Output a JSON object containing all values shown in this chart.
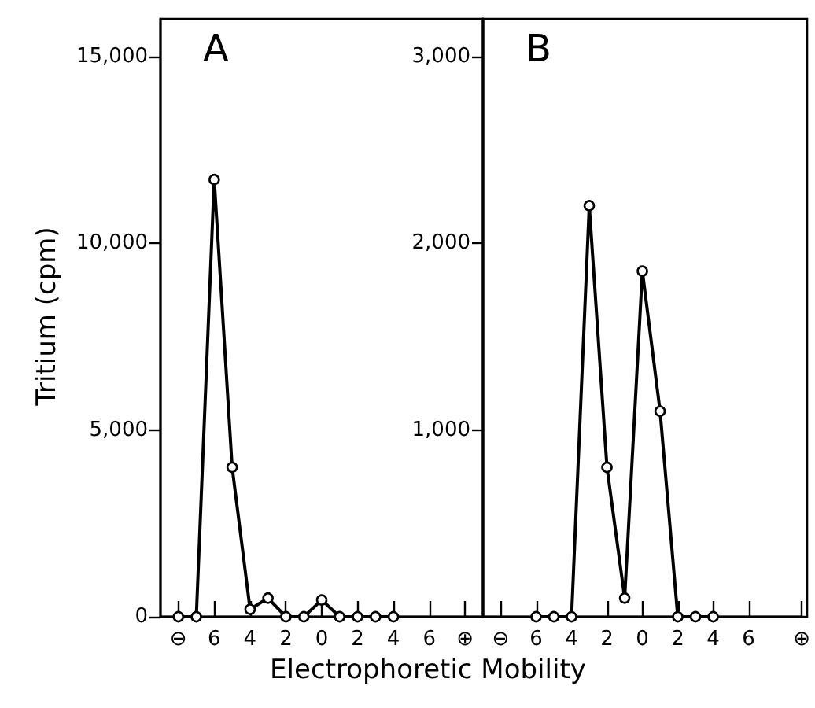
{
  "chart_data": [
    {
      "type": "line",
      "title": "A",
      "xlabel": "Electrophoretic Mobility",
      "ylabel": "Tritium (cpm)",
      "color": "#000000",
      "marker": "circle",
      "x": [
        -8,
        -7,
        -6,
        -5,
        -4,
        -3,
        -2,
        -1,
        0,
        1,
        2,
        3,
        4
      ],
      "values": [
        0,
        0,
        11700,
        4000,
        200,
        500,
        0,
        0,
        450,
        0,
        0,
        0,
        0
      ],
      "xlim": [
        -9,
        9
      ],
      "ylim": [
        0,
        16000
      ],
      "xticks": [
        {
          "value": -8,
          "label": "⊖"
        },
        {
          "value": -6,
          "label": "6"
        },
        {
          "value": -4,
          "label": "4"
        },
        {
          "value": -2,
          "label": "2"
        },
        0,
        2,
        4,
        6,
        {
          "value": 8,
          "label": "⊕"
        }
      ],
      "yticks": [
        0,
        {
          "value": 5000,
          "label": "5,000"
        },
        {
          "value": 10000,
          "label": "10,000"
        },
        {
          "value": 15000,
          "label": "15,000"
        }
      ]
    },
    {
      "type": "line",
      "title": "B",
      "color": "#000000",
      "marker": "circle",
      "x": [
        -6,
        -5,
        -4,
        -3,
        -2,
        -1,
        0,
        1,
        2,
        3,
        4
      ],
      "values": [
        0,
        0,
        0,
        2200,
        800,
        100,
        1850,
        1100,
        0,
        0,
        0
      ],
      "xlim": [
        -9,
        9
      ],
      "ylim": [
        0,
        3200
      ],
      "xticks": [
        {
          "value": -8,
          "label": "⊖"
        },
        {
          "value": -6,
          "label": "6"
        },
        {
          "value": -4,
          "label": "4"
        },
        {
          "value": -2,
          "label": "2"
        },
        0,
        2,
        4,
        6,
        {
          "value": 9,
          "label": "⊕"
        }
      ],
      "yticks": [
        {
          "value": 1000,
          "label": "1,000"
        },
        {
          "value": 2000,
          "label": "2,000"
        },
        {
          "value": 3000,
          "label": "3,000"
        }
      ]
    }
  ]
}
